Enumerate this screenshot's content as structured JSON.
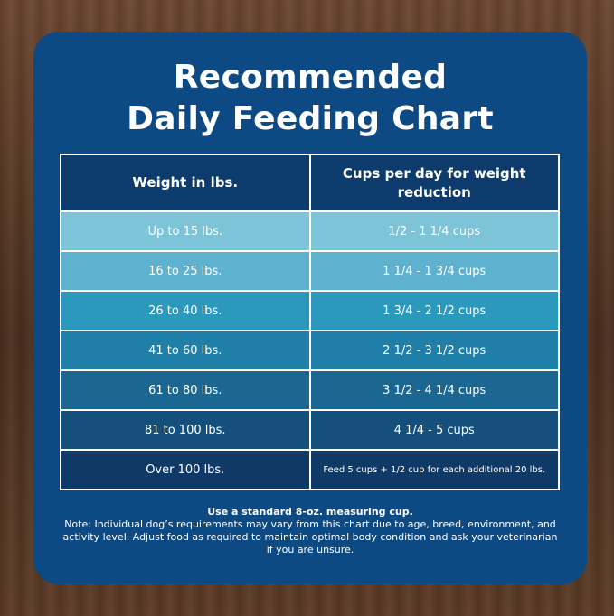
{
  "title_line1": "Recommended",
  "title_line2": "Daily Feeding Chart",
  "chart_data": {
    "type": "table",
    "headers": [
      "Weight in lbs.",
      "Cups per day for weight reduction"
    ],
    "rows": [
      {
        "weight": "Up to 15 lbs.",
        "cups": "1/2 - 1 1/4 cups",
        "color": "#7ec4d8"
      },
      {
        "weight": "16 to 25 lbs.",
        "cups": "1 1/4 - 1 3/4 cups",
        "color": "#5fb2cf"
      },
      {
        "weight": "26 to 40 lbs.",
        "cups": "1 3/4 - 2 1/2 cups",
        "color": "#2b98bd"
      },
      {
        "weight": "41 to 60 lbs.",
        "cups": "2 1/2 - 3 1/2 cups",
        "color": "#1f7fa8"
      },
      {
        "weight": "61 to 80 lbs.",
        "cups": "3 1/2 - 4 1/4 cups",
        "color": "#1b6792"
      },
      {
        "weight": "81 to 100 lbs.",
        "cups": "4 1/4 - 5 cups",
        "color": "#15507d"
      },
      {
        "weight": "Over 100 lbs.",
        "cups": "Feed 5 cups + 1/2 cup for each additional 20 lbs.",
        "color": "#0f3a67"
      }
    ]
  },
  "notes": {
    "bold_line": "Use a standard 8-oz. measuring cup.",
    "note": "Note: Individual dog’s requirements may vary from this chart due to age, breed, environment, and activity level. Adjust food as required to maintain optimal body condition and ask your veterinarian if you are unsure."
  }
}
